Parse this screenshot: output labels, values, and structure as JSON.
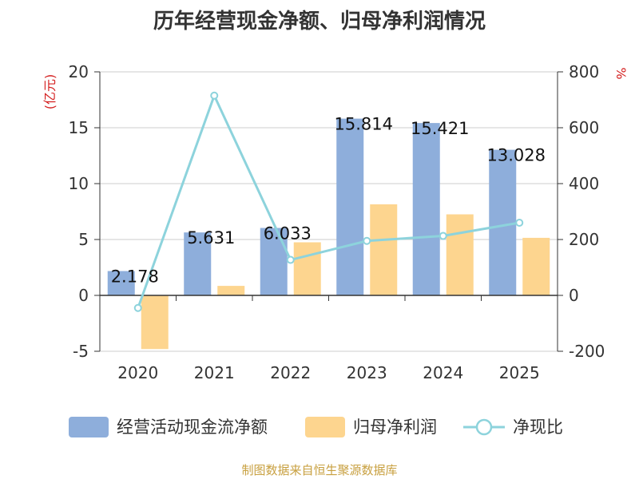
{
  "chart_data": {
    "type": "bar",
    "title": "历年经营现金净额、归母净利润情况",
    "categories": [
      "2020",
      "2021",
      "2022",
      "2023",
      "2024",
      "2025"
    ],
    "left_axis": {
      "unit": "(亿元)",
      "range": [
        -5,
        20
      ],
      "ticks": [
        "20",
        "15",
        "10",
        "5",
        "0",
        "-5"
      ]
    },
    "right_axis": {
      "unit": "%",
      "range": [
        -200,
        800
      ],
      "ticks": [
        "800",
        "600",
        "400",
        "200",
        "0",
        "-200"
      ]
    },
    "series": [
      {
        "name": "经营活动现金流净额",
        "type": "bar",
        "axis": "left",
        "color": "#8eaedb",
        "values": [
          2.178,
          5.631,
          6.033,
          15.814,
          15.421,
          13.028
        ],
        "labels": [
          "2.178",
          "5.631",
          "6.033",
          "15.814",
          "15.421",
          "13.028"
        ]
      },
      {
        "name": "归母净利润",
        "type": "bar",
        "axis": "left",
        "color": "#fdd58f",
        "values": [
          -4.8,
          0.85,
          4.75,
          8.15,
          7.25,
          5.15
        ]
      },
      {
        "name": "净现比",
        "type": "line",
        "axis": "right",
        "color": "#8dd3dc",
        "values": [
          -45,
          715,
          127,
          195,
          213,
          260
        ]
      }
    ],
    "grid": true,
    "legend_position": "bottom"
  },
  "source": "制图数据来自恒生聚源数据库"
}
